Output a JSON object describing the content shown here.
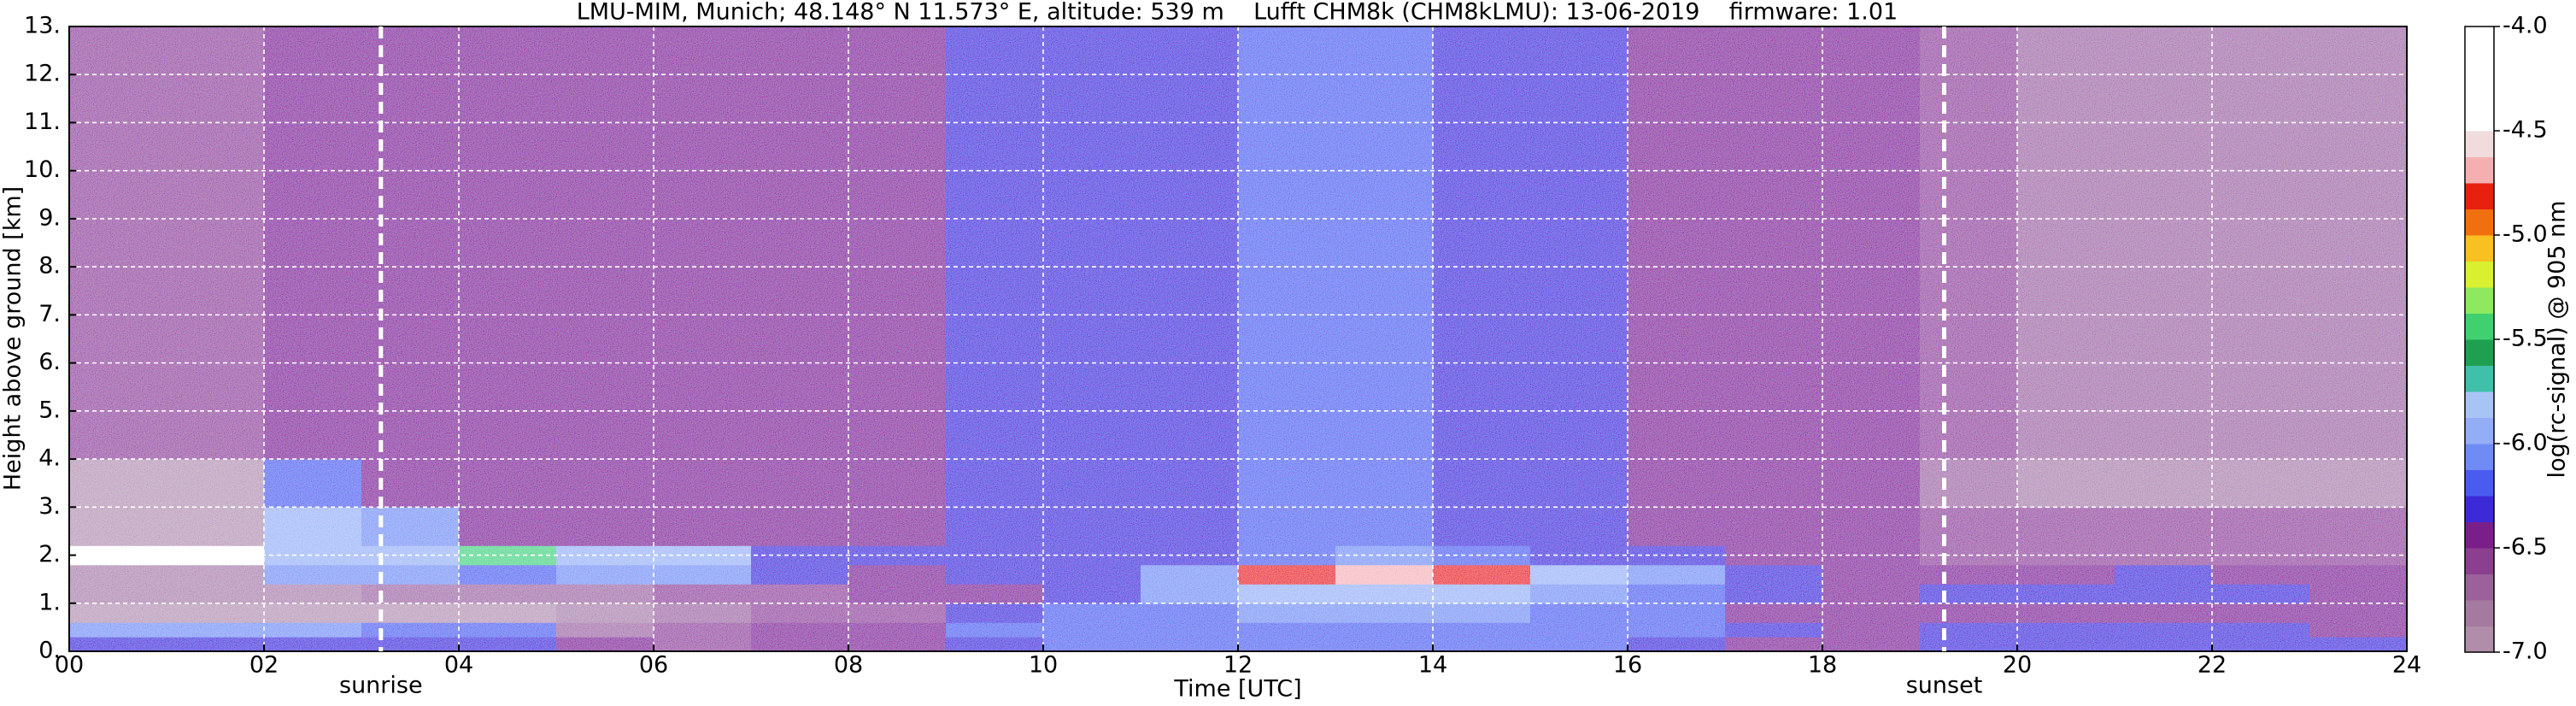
{
  "chart_data": {
    "type": "heatmap",
    "title": "LMU-MIM, Munich; 48.148° N 11.573° E, altitude: 539 m    Lufft CHM8k (CHM8kLMU): 13-06-2019    firmware: 1.01",
    "xlabel": "Time [UTC]",
    "ylabel": "Height above ground [km]",
    "colorbar_label": "log(rc-signal) @ 905 nm",
    "xlim": [
      0,
      24
    ],
    "xticks": [
      {
        "value": 0,
        "label": "00"
      },
      {
        "value": 2,
        "label": "02"
      },
      {
        "value": 4,
        "label": "04"
      },
      {
        "value": 6,
        "label": "06"
      },
      {
        "value": 8,
        "label": "08"
      },
      10,
      12,
      14,
      16,
      18,
      20,
      22,
      24
    ],
    "ylim": [
      0,
      13
    ],
    "yticks": [
      {
        "value": 0,
        "label": "0."
      },
      {
        "value": 1,
        "label": "1."
      },
      {
        "value": 2,
        "label": "2."
      },
      {
        "value": 3,
        "label": "3."
      },
      {
        "value": 4,
        "label": "4."
      },
      {
        "value": 5,
        "label": "5."
      },
      {
        "value": 6,
        "label": "6."
      },
      {
        "value": 7,
        "label": "7."
      },
      {
        "value": 8,
        "label": "8."
      },
      {
        "value": 9,
        "label": "9."
      },
      {
        "value": 10,
        "label": "10."
      },
      {
        "value": 11,
        "label": "11."
      },
      {
        "value": 12,
        "label": "12."
      },
      {
        "value": 13,
        "label": "13."
      }
    ],
    "grid": true,
    "clim": [
      -7,
      -4
    ],
    "cticks": [
      {
        "value": -7,
        "label": "-7.0"
      },
      -6.5,
      {
        "value": -6,
        "label": "-6.0"
      },
      -5.5,
      {
        "value": -5,
        "label": "-5.0"
      },
      -4.5,
      {
        "value": -4,
        "label": "-4.0"
      }
    ],
    "colormap": [
      "#b08da8",
      "#a57aa0",
      "#9a6298",
      "#8c3f8f",
      "#7a1f8a",
      "#3c2ad8",
      "#4a5cf0",
      "#6f8cf5",
      "#93aef7",
      "#a8c4f5",
      "#40c0a8",
      "#1fa050",
      "#40d070",
      "#8ee860",
      "#d8f030",
      "#f8c020",
      "#f07010",
      "#e82010",
      "#f4b0b0",
      "#f0dcdc",
      "#ffffff",
      "#ffffff",
      "#ffffff",
      "#ffffff"
    ],
    "x_bins": [
      0,
      1,
      2,
      3,
      4,
      5,
      6,
      7,
      8,
      9,
      10,
      11,
      12,
      13,
      14,
      15,
      16,
      17,
      18,
      19,
      20,
      21,
      22,
      23,
      24
    ],
    "y_bins": [
      0,
      0.3,
      0.6,
      1,
      1.4,
      1.8,
      2.2,
      3,
      4,
      13
    ],
    "z": [
      [
        -6.3,
        -6.3,
        -6.3,
        -6.3,
        -6.3,
        -6.5,
        -6.6,
        -6.5,
        -6.4,
        -6.3,
        -6.2,
        -6.2,
        -6.2,
        -6.2,
        -6.2,
        -6.2,
        -6.3,
        -6.4,
        -6.4,
        -6.3,
        -6.3,
        -6.3,
        -6.3,
        -6.3
      ],
      [
        -6.1,
        -6.1,
        -6.1,
        -6.2,
        -6.2,
        -6.7,
        -6.6,
        -6.5,
        -6.4,
        -6.2,
        -6.2,
        -6.2,
        -6.2,
        -6.2,
        -6.2,
        -6.2,
        -6.2,
        -6.3,
        -6.4,
        -6.3,
        -6.3,
        -6.3,
        -6.3,
        -6.4
      ],
      [
        -6.9,
        -6.9,
        -6.9,
        -6.9,
        -6.9,
        -6.8,
        -6.7,
        -6.6,
        -6.6,
        -6.3,
        -6.2,
        -6.2,
        -6.1,
        -6.1,
        -6.1,
        -6.2,
        -6.2,
        -6.4,
        -6.5,
        -6.4,
        -6.4,
        -6.5,
        -6.5,
        -6.5
      ],
      [
        -6.8,
        -6.8,
        -6.8,
        -6.7,
        -6.7,
        -6.7,
        -6.6,
        -6.6,
        -6.5,
        -6.4,
        -6.3,
        -6.1,
        -6.0,
        -6.0,
        -6.0,
        -6.1,
        -6.2,
        -6.3,
        -6.4,
        -6.3,
        -6.3,
        -6.3,
        -6.3,
        -6.4
      ],
      [
        -6.8,
        -6.8,
        -6.1,
        -6.1,
        -6.2,
        -6.1,
        -6.1,
        -6.3,
        -6.4,
        -6.3,
        -6.3,
        -6.1,
        -4.8,
        -4.7,
        -4.8,
        -6.0,
        -6.1,
        -6.3,
        -6.5,
        -6.4,
        -6.4,
        -6.3,
        -6.4,
        -6.5
      ],
      [
        -4.3,
        -4.3,
        -6.0,
        -5.9,
        -5.5,
        -5.9,
        -6.0,
        -6.3,
        -6.3,
        -6.3,
        -6.3,
        -6.3,
        -6.2,
        -6.1,
        -6.2,
        -6.3,
        -6.3,
        -6.4,
        -6.5,
        -6.6,
        -6.6,
        -6.6,
        -6.6,
        -6.6
      ],
      [
        -7,
        -7,
        -6.0,
        -6.1,
        -6.4,
        -6.4,
        -6.4,
        -6.4,
        -6.4,
        -6.3,
        -6.3,
        -6.3,
        -6.2,
        -6.2,
        -6.3,
        -6.3,
        -6.4,
        -6.4,
        -6.5,
        -6.6,
        -6.6,
        -6.6,
        -6.6,
        -6.6
      ],
      [
        -7,
        -7,
        -6.2,
        -6.4,
        -6.4,
        -6.4,
        -6.4,
        -6.4,
        -6.4,
        -6.3,
        -6.3,
        -6.3,
        -6.2,
        -6.2,
        -6.3,
        -6.3,
        -6.4,
        -6.4,
        -6.5,
        -6.7,
        -6.8,
        -6.8,
        -6.8,
        -6.8
      ],
      [
        -6.6,
        -6.6,
        -6.5,
        -6.5,
        -6.5,
        -6.5,
        -6.4,
        -6.4,
        -6.4,
        -6.3,
        -6.3,
        -6.3,
        -6.2,
        -6.2,
        -6.3,
        -6.3,
        -6.4,
        -6.4,
        -6.5,
        -6.6,
        -6.7,
        -6.7,
        -6.7,
        -6.7
      ]
    ],
    "annotations": [
      {
        "x": 3.2,
        "label": "sunrise"
      },
      {
        "x": 19.25,
        "label": "sunset"
      }
    ]
  }
}
